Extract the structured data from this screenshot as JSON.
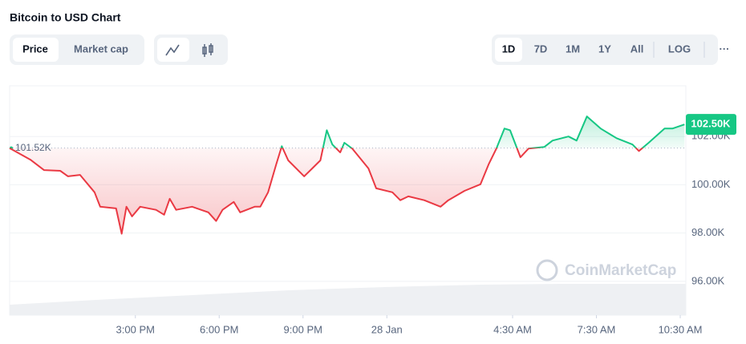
{
  "ui": {
    "title": "Bitcoin to USD Chart",
    "view_tabs": [
      "Price",
      "Market cap"
    ],
    "range_tabs": [
      "1D",
      "7D",
      "1M",
      "1Y",
      "All"
    ],
    "scale_tab": "LOG",
    "more": "···",
    "watermark": "CoinMarketCap"
  },
  "chart_data": {
    "type": "line",
    "x": [
      10.5,
      11.24,
      11.73,
      12.31,
      12.59,
      13.02,
      13.54,
      13.74,
      14.31,
      14.51,
      14.68,
      14.88,
      15.17,
      15.74,
      16.03,
      16.23,
      16.46,
      17.03,
      17.61,
      17.89,
      18.12,
      18.52,
      18.75,
      19.27,
      19.47,
      19.75,
      20.04,
      20.24,
      20.47,
      21.04,
      21.33,
      21.62,
      21.85,
      22.05,
      22.33,
      22.48,
      22.76,
      23.34,
      23.62,
      24.2,
      24.48,
      24.77,
      25.34,
      25.92,
      26.2,
      26.78,
      27.35,
      27.64,
      27.92,
      28.21,
      28.41,
      28.78,
      29.07,
      29.64,
      29.93,
      30.5,
      30.79,
      31.16,
      31.65,
      32.22,
      32.79,
      33.02,
      33.37,
      33.94,
      34.22,
      34.65
    ],
    "values": [
      101.52,
      101.04,
      100.61,
      100.58,
      100.35,
      100.41,
      99.69,
      99.09,
      99.02,
      97.97,
      99.09,
      98.69,
      99.09,
      98.96,
      98.76,
      99.42,
      98.96,
      99.09,
      98.86,
      98.5,
      98.96,
      99.29,
      98.86,
      99.09,
      99.09,
      99.69,
      100.84,
      101.6,
      101.01,
      100.35,
      100.68,
      101.01,
      102.26,
      101.67,
      101.34,
      101.74,
      101.5,
      100.68,
      99.85,
      99.69,
      99.36,
      99.52,
      99.36,
      99.09,
      99.36,
      99.75,
      100.02,
      100.84,
      101.5,
      102.33,
      102.26,
      101.14,
      101.5,
      101.57,
      101.83,
      102.0,
      101.83,
      102.83,
      102.33,
      101.93,
      101.67,
      101.4,
      101.74,
      102.33,
      102.33,
      102.5
    ],
    "color_up": "#16c784",
    "color_down": "#ea3943",
    "reference_line": {
      "value": 101.52,
      "label": "101.52K"
    },
    "last_label": {
      "value": 102.5,
      "label": "102.50K"
    },
    "xlim": [
      10.5,
      34.7
    ],
    "xticks": [
      {
        "value": 15,
        "label": "3:00 PM"
      },
      {
        "value": 18,
        "label": "6:00 PM"
      },
      {
        "value": 21,
        "label": "9:00 PM"
      },
      {
        "value": 24,
        "label": "28 Jan"
      },
      {
        "value": 28.5,
        "label": "4:30 AM"
      },
      {
        "value": 31.5,
        "label": "7:30 AM"
      },
      {
        "value": 34.5,
        "label": "10:30 AM"
      }
    ],
    "ylim": [
      94.6,
      104.1
    ],
    "yticks": [
      {
        "value": 96,
        "label": "96.00K"
      },
      {
        "value": 98,
        "label": "98.00K"
      },
      {
        "value": 100,
        "label": "100.00K"
      },
      {
        "value": 102,
        "label": "102.00K"
      }
    ],
    "grid": true
  }
}
